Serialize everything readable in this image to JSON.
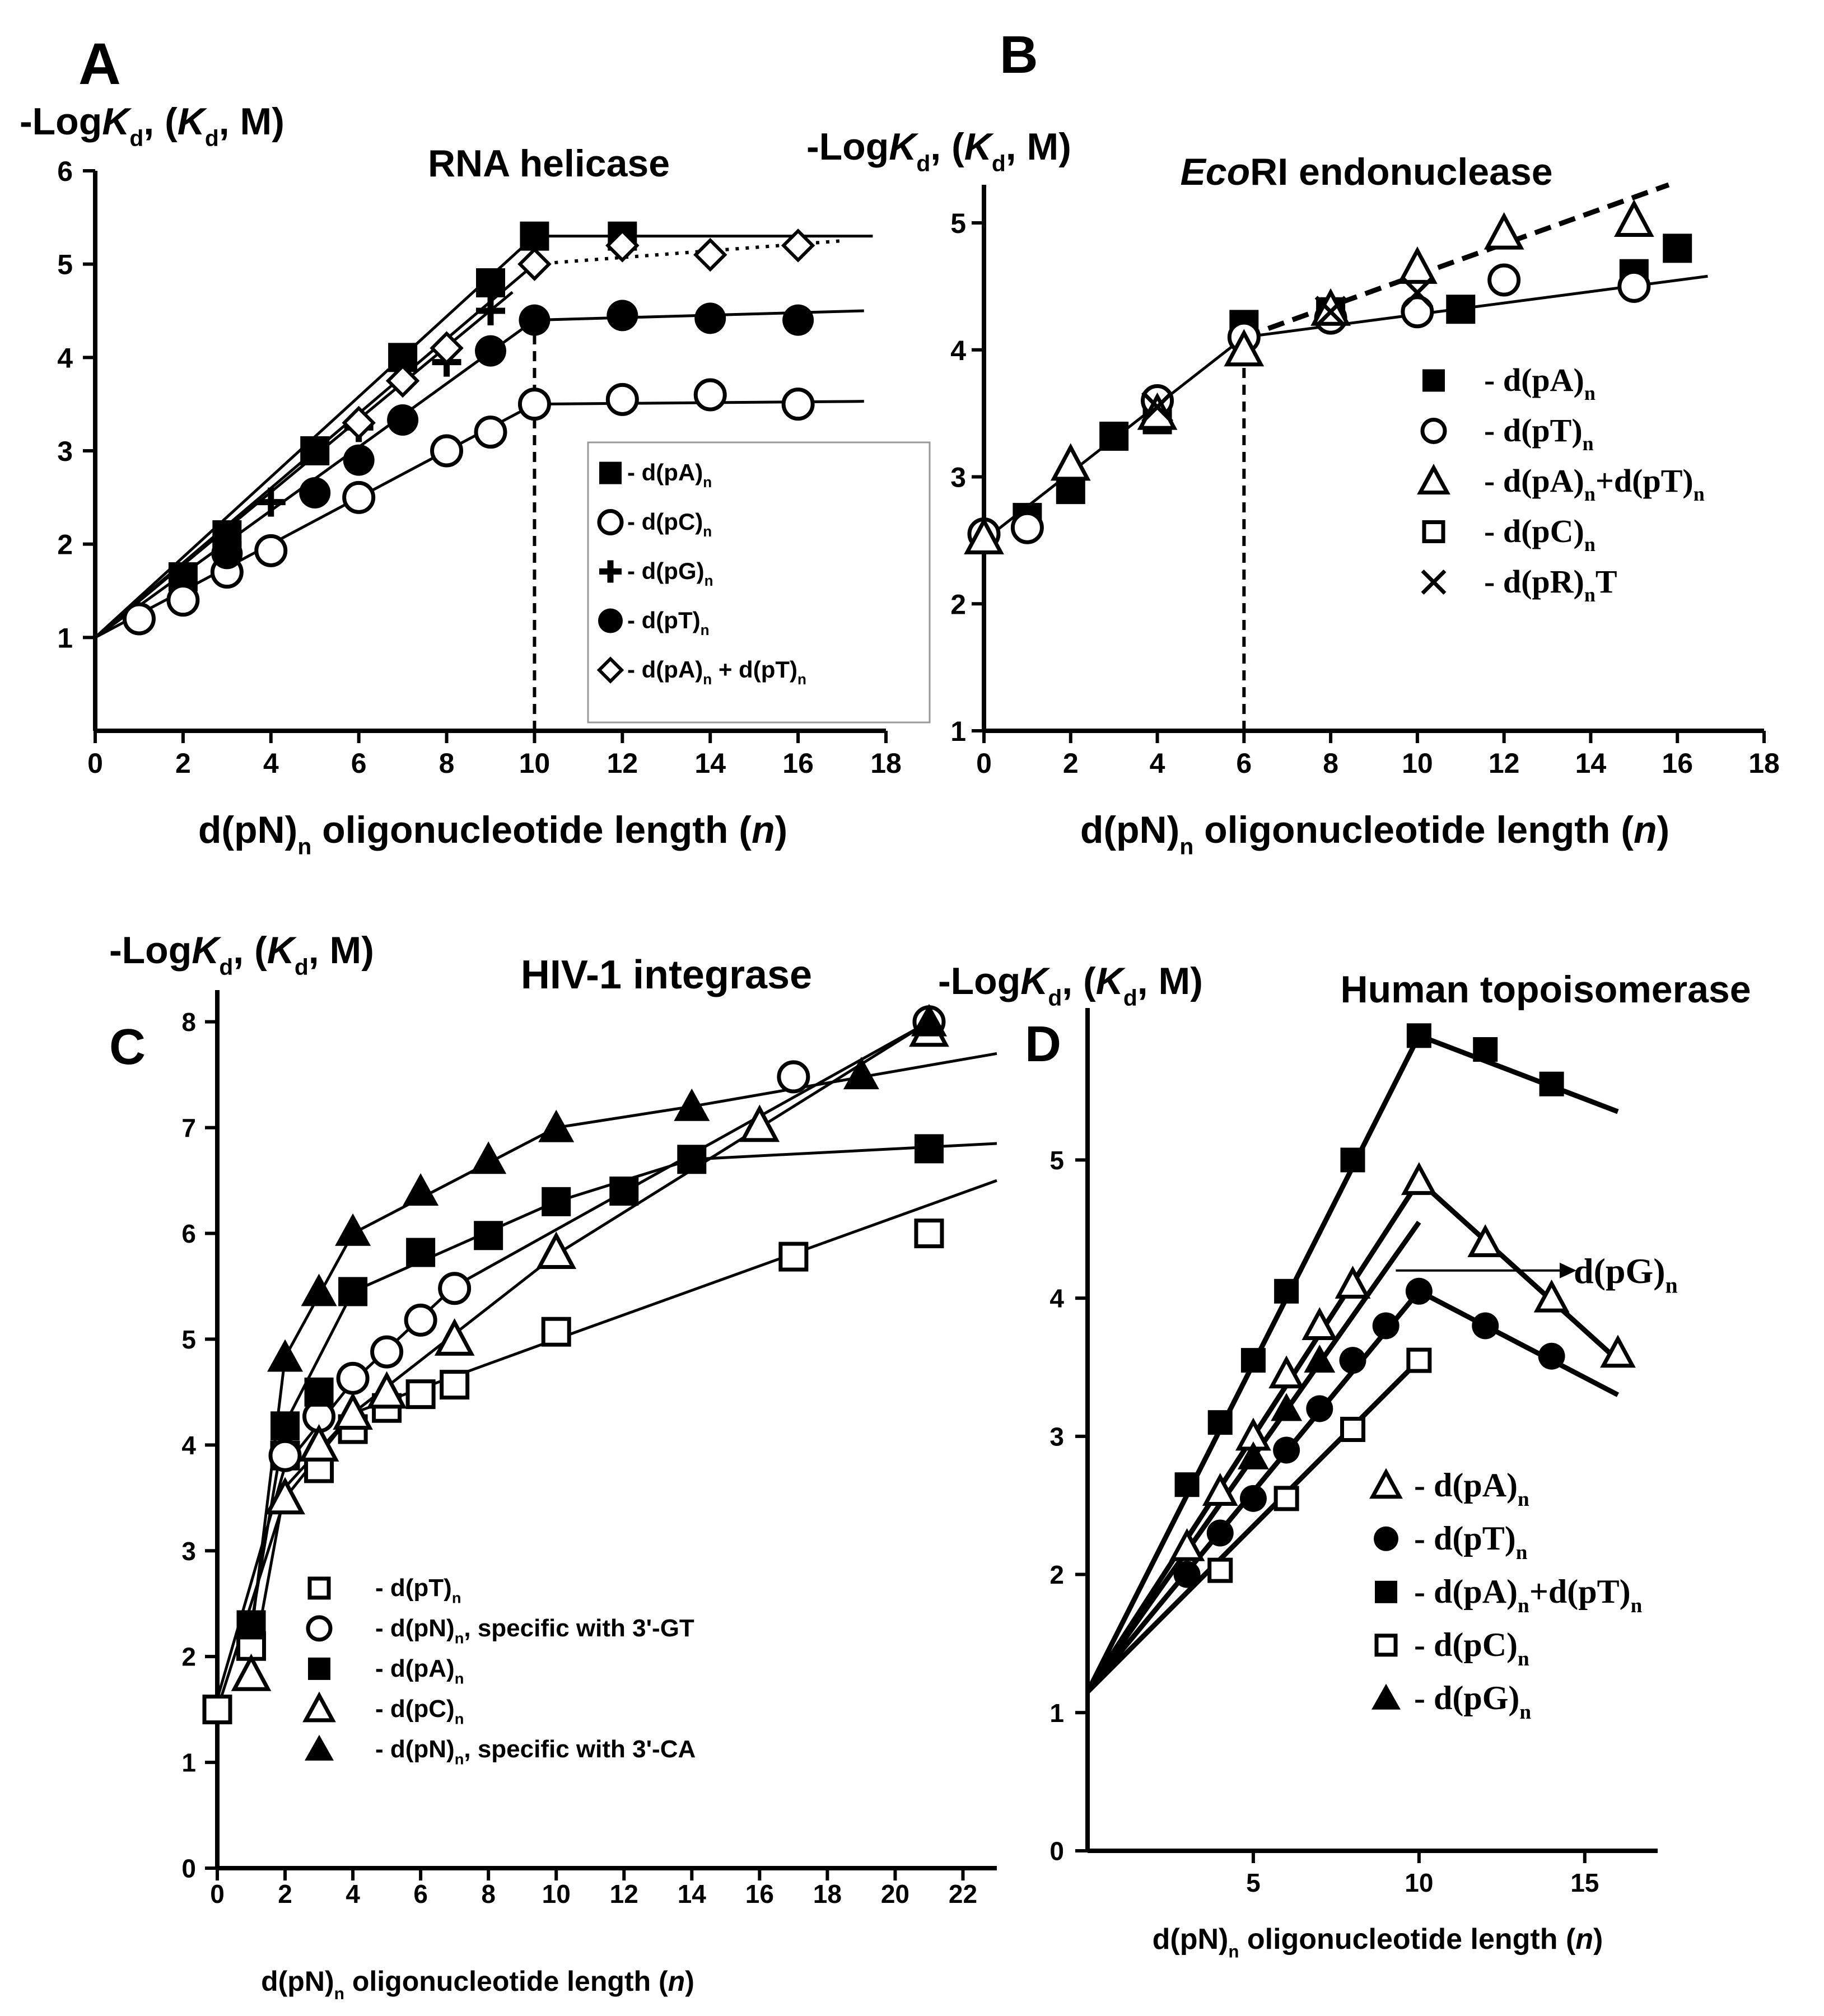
{
  "figure": "4-panel chart",
  "chart_data": [
    {
      "panel": "A",
      "type": "scatter",
      "title": "RNA helicase",
      "ylabel": "-LogKd, (Kd, M)",
      "xlabel": "d(pN)n oligonucleotide length (n)",
      "xlim": [
        0,
        18
      ],
      "ylim": [
        0,
        6
      ],
      "xticks": [
        "0",
        "2",
        "4",
        "6",
        "8",
        "10",
        "12",
        "14",
        "16",
        "18"
      ],
      "yticks": [
        "1",
        "2",
        "3",
        "4",
        "5",
        "6"
      ],
      "legend_position": "lower-right",
      "series": [
        {
          "name": "- d(pA)n",
          "marker": "square-filled",
          "x": [
            2,
            3,
            5,
            7,
            9,
            10,
            12
          ],
          "y": [
            1.65,
            2.1,
            3.0,
            4.0,
            4.8,
            5.3,
            5.3
          ]
        },
        {
          "name": "- d(pC)n",
          "marker": "circle-open",
          "x": [
            1,
            2,
            3,
            4,
            6,
            8,
            9,
            10,
            12,
            14,
            16
          ],
          "y": [
            1.2,
            1.4,
            1.7,
            1.93,
            2.5,
            3.0,
            3.2,
            3.5,
            3.55,
            3.6,
            3.5
          ]
        },
        {
          "name": "- d(pG)n",
          "marker": "plus",
          "x": [
            3,
            4,
            6,
            8,
            9
          ],
          "y": [
            2.0,
            2.45,
            3.25,
            3.95,
            4.5
          ]
        },
        {
          "name": "- d(pT)n",
          "marker": "circle-filled",
          "x": [
            3,
            5,
            6,
            7,
            9,
            10,
            12,
            14,
            16
          ],
          "y": [
            1.9,
            2.55,
            2.9,
            3.33,
            4.07,
            4.4,
            4.45,
            4.42,
            4.4
          ]
        },
        {
          "name": "- d(pA)n + d(pT)n",
          "marker": "diamond-open",
          "x": [
            6,
            7,
            8,
            10,
            12,
            14,
            16
          ],
          "y": [
            3.3,
            3.75,
            4.1,
            5.0,
            5.2,
            5.1,
            5.2
          ]
        }
      ],
      "fit_lines": [
        {
          "x": [
            0,
            10
          ],
          "y": [
            1,
            5.3
          ]
        },
        {
          "x": [
            10,
            17.7
          ],
          "y": [
            5.3,
            5.3
          ]
        },
        {
          "x": [
            0,
            10
          ],
          "y": [
            1,
            4.4
          ]
        },
        {
          "x": [
            10,
            17.5
          ],
          "y": [
            4.4,
            4.5
          ]
        },
        {
          "x": [
            0,
            10
          ],
          "y": [
            1,
            3.5
          ]
        },
        {
          "x": [
            10,
            17.5
          ],
          "y": [
            3.5,
            3.53
          ]
        },
        {
          "x": [
            0,
            9.5
          ],
          "y": [
            1,
            4.7
          ]
        },
        {
          "x": [
            0,
            10
          ],
          "y": [
            1,
            5.0
          ]
        },
        {
          "x": [
            10,
            17
          ],
          "y": [
            5.0,
            5.25
          ],
          "style": "dotted"
        }
      ],
      "vline": {
        "x": 10,
        "from": 0,
        "to": 4.4
      }
    },
    {
      "panel": "B",
      "type": "scatter",
      "title": "EcoRI endonuclease",
      "title_italic_part": "Eco",
      "title_rest": "RI endonuclease",
      "ylabel": "-LogKd, (Kd, M)",
      "xlabel": "d(pN)n oligonucleotide length (n)",
      "xlim": [
        0,
        18
      ],
      "ylim": [
        1,
        5.3
      ],
      "xticks": [
        "0",
        "2",
        "4",
        "6",
        "8",
        "10",
        "12",
        "14",
        "16",
        "18"
      ],
      "yticks": [
        "1",
        "2",
        "3",
        "4",
        "5"
      ],
      "legend_position": "right",
      "series": [
        {
          "name": "- d(pA)n",
          "marker": "square-filled",
          "x": [
            1,
            2,
            3,
            4,
            6,
            8,
            11,
            15,
            16
          ],
          "y": [
            2.68,
            2.9,
            3.32,
            3.45,
            4.2,
            4.3,
            4.32,
            4.6,
            4.8
          ]
        },
        {
          "name": "- d(pT)n",
          "marker": "circle-open",
          "x": [
            0,
            1,
            4,
            6,
            8,
            10,
            12,
            15
          ],
          "y": [
            2.55,
            2.6,
            3.6,
            4.1,
            4.25,
            4.3,
            4.55,
            4.5
          ]
        },
        {
          "name": "- d(pA)n+d(pT)n",
          "marker": "triangle-open",
          "x": [
            0,
            2,
            4,
            6,
            8,
            10,
            12,
            15
          ],
          "y": [
            2.52,
            3.1,
            3.5,
            4.0,
            4.32,
            4.65,
            4.92,
            5.02
          ]
        },
        {
          "name": "- d(pC)n",
          "marker": "square-open",
          "x": [],
          "y": []
        },
        {
          "name": "- d(pR)nT",
          "marker": "x",
          "x": [
            4,
            8,
            10
          ],
          "y": [
            3.55,
            4.3,
            4.45
          ]
        }
      ],
      "fit_lines": [
        {
          "x": [
            0,
            6
          ],
          "y": [
            2.5,
            4.1
          ]
        },
        {
          "x": [
            6,
            16.7
          ],
          "y": [
            4.1,
            4.58
          ]
        },
        {
          "x": [
            6,
            15.8
          ],
          "y": [
            4.1,
            5.3
          ],
          "style": "dashed"
        }
      ],
      "vline": {
        "x": 6,
        "from": 1,
        "to": 4.0
      }
    },
    {
      "panel": "C",
      "type": "scatter",
      "title": "HIV-1 integrase",
      "ylabel": "-LogKd, (Kd, M)",
      "xlabel": "d(pN)n oligonucleotide length (n)",
      "xlim": [
        0,
        23
      ],
      "ylim": [
        0,
        8.3
      ],
      "xticks": [
        "0",
        "2",
        "4",
        "6",
        "8",
        "10",
        "12",
        "14",
        "16",
        "18",
        "20",
        "22"
      ],
      "yticks": [
        "0",
        "1",
        "2",
        "3",
        "4",
        "5",
        "6",
        "7",
        "8"
      ],
      "legend_position": "lower-left",
      "series": [
        {
          "name": "- d(pT)n",
          "marker": "square-open",
          "x": [
            0,
            1,
            2,
            3,
            4,
            5,
            6,
            7,
            10,
            17,
            21
          ],
          "y": [
            1.5,
            2.1,
            3.9,
            3.78,
            4.15,
            4.35,
            4.48,
            4.57,
            5.07,
            5.78,
            6.0
          ]
        },
        {
          "name": "- d(pN)n, specific with 3'-GT",
          "marker": "circle-open",
          "x": [
            2,
            3,
            4,
            5,
            6,
            7,
            17,
            21
          ],
          "y": [
            3.9,
            4.27,
            4.63,
            4.88,
            5.18,
            5.48,
            7.48,
            8.0
          ]
        },
        {
          "name": "- d(pA)n",
          "marker": "square-filled",
          "x": [
            1,
            2,
            3,
            4,
            6,
            8,
            10,
            12,
            14,
            21
          ],
          "y": [
            2.3,
            4.18,
            4.5,
            5.45,
            5.82,
            5.98,
            6.3,
            6.4,
            6.7,
            6.8
          ]
        },
        {
          "name": "- d(pC)n",
          "marker": "triangle-open",
          "x": [
            1,
            2,
            3,
            4,
            5,
            7,
            10,
            16,
            21
          ],
          "y": [
            1.83,
            3.5,
            4.0,
            4.3,
            4.5,
            5.0,
            5.82,
            7.02,
            7.92
          ]
        },
        {
          "name": "- d(pN)n, specific with 3'-CA",
          "marker": "triangle-filled",
          "x": [
            2,
            3,
            4,
            6,
            8,
            10,
            14,
            19,
            21
          ],
          "y": [
            4.83,
            5.45,
            6.02,
            6.4,
            6.7,
            7.0,
            7.2,
            7.5,
            8.0
          ]
        }
      ],
      "fit_lines": [
        {
          "x": [
            0,
            2,
            4,
            10,
            23
          ],
          "y": [
            1.5,
            3.5,
            4.3,
            5.0,
            6.5
          ]
        },
        {
          "x": [
            0,
            2,
            4,
            7,
            21
          ],
          "y": [
            1.6,
            3.8,
            4.6,
            5.5,
            8.0
          ]
        },
        {
          "x": [
            1,
            2,
            4,
            10,
            14,
            23
          ],
          "y": [
            2.3,
            4.2,
            5.45,
            6.3,
            6.7,
            6.85
          ]
        },
        {
          "x": [
            1,
            2,
            4,
            10,
            21
          ],
          "y": [
            1.85,
            3.6,
            4.3,
            5.8,
            8.0
          ]
        },
        {
          "x": [
            1,
            2,
            4,
            10,
            14,
            23
          ],
          "y": [
            2.2,
            4.83,
            6.0,
            7.0,
            7.2,
            7.7
          ]
        }
      ]
    },
    {
      "panel": "D",
      "type": "scatter",
      "title": "Human topoisomerase",
      "ylabel": "-LogKd, (Kd, M)",
      "xlabel": "d(pN)n oligonucleotide length (n)",
      "xlim": [
        0,
        17.2
      ],
      "ylim": [
        0,
        6.1
      ],
      "xticks": [
        "5",
        "10",
        "15"
      ],
      "yticks": [
        "0",
        "1",
        "2",
        "3",
        "4",
        "5"
      ],
      "legend_position": "lower-right",
      "annotation": "d(pG)n",
      "series": [
        {
          "name": "- d(pA)n",
          "marker": "triangle-open",
          "x": [
            3,
            4,
            5,
            6,
            7,
            8,
            10,
            12,
            14,
            16
          ],
          "y": [
            2.2,
            2.6,
            3.0,
            3.45,
            3.8,
            4.1,
            4.85,
            4.4,
            4.0,
            3.6
          ]
        },
        {
          "name": "- d(pT)n",
          "marker": "circle-filled",
          "x": [
            3,
            4,
            5,
            6,
            7,
            8,
            9,
            10,
            12,
            14
          ],
          "y": [
            2.0,
            2.3,
            2.55,
            2.9,
            3.2,
            3.55,
            3.8,
            4.05,
            3.8,
            3.58
          ]
        },
        {
          "name": "- d(pA)n+d(pT)n",
          "marker": "square-filled",
          "x": [
            3,
            4,
            5,
            6,
            8,
            10,
            12,
            14
          ],
          "y": [
            2.65,
            3.1,
            3.55,
            4.05,
            5.0,
            5.9,
            5.8,
            5.55
          ]
        },
        {
          "name": "- d(pC)n",
          "marker": "square-open",
          "x": [
            4,
            6,
            8,
            10
          ],
          "y": [
            2.03,
            2.55,
            3.05,
            3.55
          ]
        },
        {
          "name": "- d(pG)n",
          "marker": "triangle-filled",
          "x": [
            5,
            6,
            7
          ],
          "y": [
            2.85,
            3.2,
            3.55
          ]
        }
      ],
      "fit_lines": [
        {
          "x": [
            0,
            10,
            16
          ],
          "y": [
            1.15,
            5.9,
            5.35
          ]
        },
        {
          "x": [
            0,
            10,
            16
          ],
          "y": [
            1.15,
            4.85,
            3.55
          ]
        },
        {
          "x": [
            0,
            10
          ],
          "y": [
            1.15,
            4.55
          ]
        },
        {
          "x": [
            0,
            10,
            16
          ],
          "y": [
            1.15,
            4.05,
            3.3
          ]
        },
        {
          "x": [
            0,
            10
          ],
          "y": [
            1.15,
            3.55
          ]
        }
      ]
    }
  ]
}
